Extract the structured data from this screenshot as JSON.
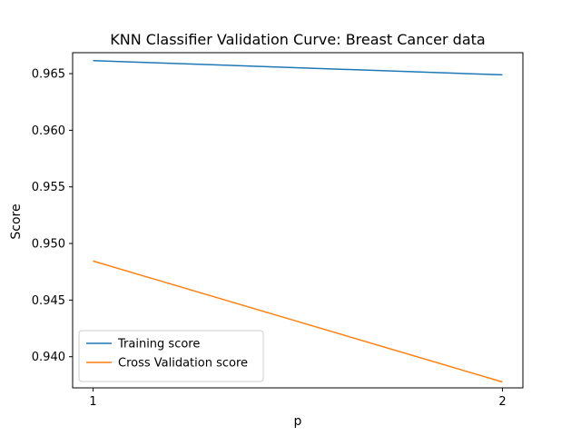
{
  "chart_data": {
    "type": "line",
    "title": "KNN Classifier Validation Curve: Breast Cancer data",
    "xlabel": "p",
    "ylabel": "Score",
    "x": [
      1,
      2
    ],
    "x_ticks": [
      "1",
      "2"
    ],
    "y_ticks": [
      "0.940",
      "0.945",
      "0.950",
      "0.955",
      "0.960",
      "0.965"
    ],
    "y_tick_values": [
      0.94,
      0.945,
      0.95,
      0.955,
      0.96,
      0.965
    ],
    "xlim": [
      0.95,
      2.05
    ],
    "ylim": [
      0.93725,
      0.96685
    ],
    "grid": false,
    "legend_position": "lower-left",
    "series": [
      {
        "name": "Training score",
        "color": "#1f77b4",
        "values": [
          0.96615,
          0.96489
        ]
      },
      {
        "name": "Cross Validation score",
        "color": "#ff7f0e",
        "values": [
          0.94845,
          0.93777
        ]
      }
    ]
  }
}
